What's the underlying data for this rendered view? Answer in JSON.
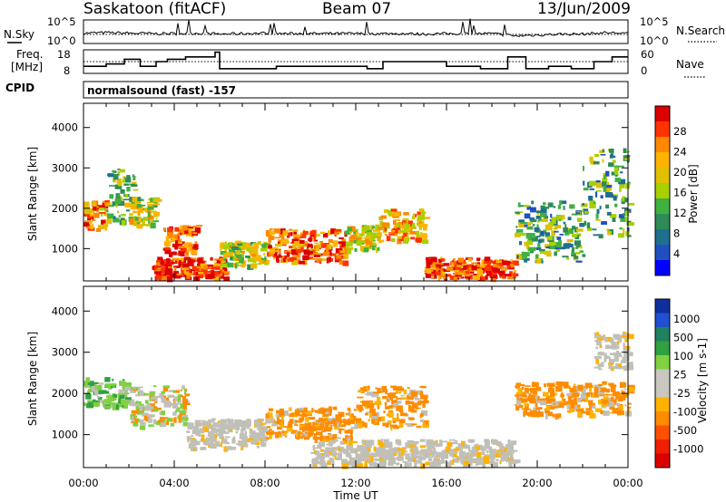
{
  "header": {
    "station": "Saskatoon (fitACF)",
    "beam": "Beam 07",
    "date": "13/Jun/2009"
  },
  "noise_panel": {
    "left_label": "N.Sky",
    "right_label": "N.Search",
    "y_top_label": "10^5",
    "y_bottom_label": "10^0",
    "legend_sky": "solid",
    "legend_search": "dotted"
  },
  "freq_panel": {
    "left_label_line1": "Freq.",
    "left_label_line2": "[MHz]",
    "left_ticks": [
      "18",
      "8"
    ],
    "right_label": "Nave",
    "right_ticks": [
      "60",
      "0"
    ]
  },
  "cpid": {
    "label": "CPID",
    "program": "normalsound (fast) -157"
  },
  "chart_data": [
    {
      "type": "line",
      "title": "",
      "series": [
        {
          "name": "N.Sky",
          "x_hours": [
            0,
            1,
            2,
            3,
            4,
            5,
            6,
            7,
            8,
            9,
            10,
            11,
            12,
            13,
            14,
            15,
            16,
            17,
            18,
            19,
            20,
            21,
            22,
            23,
            24
          ],
          "values_log10": [
            2.2,
            2.3,
            2.2,
            2.1,
            2.1,
            2.2,
            2.0,
            2.1,
            2.2,
            2.1,
            2.1,
            2.1,
            2.1,
            2.1,
            2.1,
            2.0,
            2.1,
            2.1,
            2.1,
            1.6,
            1.8,
            2.0,
            2.0,
            2.3,
            2.2
          ]
        },
        {
          "name": "N.Search",
          "x_hours": [
            0,
            24
          ],
          "values_log10": [
            2.0,
            2.0
          ]
        }
      ],
      "ylim_log10": [
        0,
        5
      ]
    },
    {
      "type": "line",
      "title": "",
      "series": [
        {
          "name": "Freq",
          "unit": "MHz",
          "steps": [
            [
              0.0,
              11
            ],
            [
              1.0,
              12
            ],
            [
              1.8,
              14
            ],
            [
              2.5,
              11
            ],
            [
              3.2,
              13
            ],
            [
              3.7,
              14
            ],
            [
              4.5,
              15
            ],
            [
              5.8,
              17
            ],
            [
              6.0,
              10
            ],
            [
              8.5,
              11
            ],
            [
              9.5,
              11
            ],
            [
              10.5,
              11
            ],
            [
              11.5,
              11
            ],
            [
              12.5,
              10
            ],
            [
              13.2,
              13
            ],
            [
              14.5,
              13
            ],
            [
              16.0,
              11
            ],
            [
              17.0,
              11
            ],
            [
              17.5,
              10
            ],
            [
              18.7,
              15
            ],
            [
              19.5,
              10
            ],
            [
              20.5,
              11
            ],
            [
              21.5,
              10
            ],
            [
              22.0,
              10
            ],
            [
              22.5,
              13
            ],
            [
              23.3,
              15
            ],
            [
              24.0,
              15
            ]
          ]
        },
        {
          "name": "Nave",
          "values": [
            30,
            30
          ]
        }
      ],
      "ylim_freq": [
        8,
        18
      ],
      "ylim_nave": [
        0,
        60
      ]
    },
    {
      "type": "heatmap",
      "title": "Power",
      "xlabel": "Time UT",
      "ylabel": "Slant Range [km]",
      "xlim_hours": [
        0,
        24
      ],
      "ylim_km": [
        200,
        4600
      ],
      "xticks": [
        "00:00",
        "04:00",
        "08:00",
        "12:00",
        "16:00",
        "20:00",
        "00:00"
      ],
      "yticks": [
        "1000",
        "2000",
        "3000",
        "4000"
      ],
      "colorbar_label": "Power [dB]",
      "colorbar_ticks": [
        "28",
        "24",
        "20",
        "16",
        "12",
        "8",
        "4"
      ],
      "colorbar_colors": [
        "#dd0000",
        "#ff3300",
        "#ff8800",
        "#ffb300",
        "#e0c000",
        "#a8d000",
        "#40b040",
        "#2e8b57",
        "#1f6f8f",
        "#2050c0",
        "#0000ff"
      ],
      "echo_regions": [
        {
          "t": [
            0.0,
            1.0
          ],
          "r": [
            1500,
            2200
          ],
          "level": 0.75
        },
        {
          "t": [
            1.0,
            2.2
          ],
          "r": [
            1700,
            3000
          ],
          "level": 0.45
        },
        {
          "t": [
            2.0,
            3.2
          ],
          "r": [
            1600,
            2300
          ],
          "level": 0.55
        },
        {
          "t": [
            3.5,
            5.0
          ],
          "r": [
            900,
            1600
          ],
          "level": 0.9
        },
        {
          "t": [
            3.0,
            6.2
          ],
          "r": [
            300,
            800
          ],
          "level": 0.95
        },
        {
          "t": [
            6.0,
            8.0
          ],
          "r": [
            600,
            1200
          ],
          "level": 0.55
        },
        {
          "t": [
            8.0,
            11.5
          ],
          "r": [
            700,
            1500
          ],
          "level": 0.85
        },
        {
          "t": [
            11.5,
            13.0
          ],
          "r": [
            1000,
            1600
          ],
          "level": 0.6
        },
        {
          "t": [
            13.0,
            15.0
          ],
          "r": [
            1200,
            2000
          ],
          "level": 0.7
        },
        {
          "t": [
            15.0,
            19.0
          ],
          "r": [
            300,
            800
          ],
          "level": 0.9
        },
        {
          "t": [
            19.0,
            22.0
          ],
          "r": [
            700,
            2200
          ],
          "level": 0.35
        },
        {
          "t": [
            22.0,
            24.0
          ],
          "r": [
            1300,
            3500
          ],
          "level": 0.35
        }
      ]
    },
    {
      "type": "heatmap",
      "title": "Velocity",
      "xlabel": "Time UT",
      "ylabel": "Slant Range [km]",
      "xlim_hours": [
        0,
        24
      ],
      "ylim_km": [
        200,
        4600
      ],
      "xticks": [
        "00:00",
        "04:00",
        "08:00",
        "12:00",
        "16:00",
        "20:00",
        "00:00"
      ],
      "yticks": [
        "1000",
        "2000",
        "3000",
        "4000"
      ],
      "colorbar_label": "Velocity [m s-1]",
      "colorbar_ticks": [
        "1000",
        "500",
        "100",
        "25",
        "-25",
        "-100",
        "-500",
        "-1000"
      ],
      "colorbar_colors": [
        "#1030a0",
        "#2050d0",
        "#208060",
        "#30a040",
        "#80d040",
        "#c8c8c0",
        "#c8c8c0",
        "#ffb300",
        "#ff8c00",
        "#ff5000",
        "#ee2000",
        "#dd0000"
      ],
      "echo_regions": [
        {
          "t": [
            0.0,
            2.0
          ],
          "r": [
            1700,
            2400
          ],
          "class": "greenish"
        },
        {
          "t": [
            2.0,
            4.5
          ],
          "r": [
            1200,
            2200
          ],
          "class": "mixed"
        },
        {
          "t": [
            4.5,
            8.0
          ],
          "r": [
            700,
            1400
          ],
          "class": "ground"
        },
        {
          "t": [
            8.0,
            12.0
          ],
          "r": [
            900,
            1700
          ],
          "class": "orange"
        },
        {
          "t": [
            12.0,
            15.0
          ],
          "r": [
            1200,
            2200
          ],
          "class": "orange"
        },
        {
          "t": [
            10.0,
            19.0
          ],
          "r": [
            300,
            900
          ],
          "class": "ground"
        },
        {
          "t": [
            19.0,
            24.0
          ],
          "r": [
            1500,
            2300
          ],
          "class": "orange"
        },
        {
          "t": [
            22.5,
            24.0
          ],
          "r": [
            2600,
            3500
          ],
          "class": "ground"
        }
      ]
    }
  ],
  "colors": {
    "axis": "#000000",
    "ground_scatter": "#c0c0b8"
  }
}
